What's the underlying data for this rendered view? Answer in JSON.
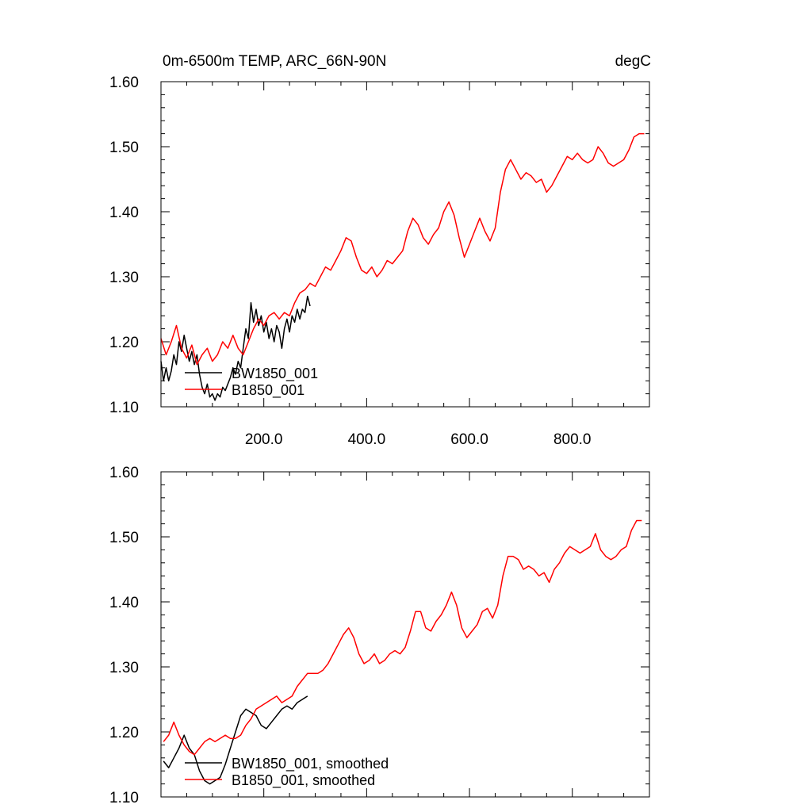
{
  "chart_data": [
    {
      "type": "line",
      "title": "0m-6500m TEMP, ARC_66N-90N",
      "units": "degC",
      "xlim": [
        0,
        950
      ],
      "ylim": [
        1.1,
        1.6
      ],
      "xticks": [
        200,
        400,
        600,
        800
      ],
      "xtick_labels": [
        "200.0",
        "400.0",
        "600.0",
        "800.0"
      ],
      "yticks": [
        1.1,
        1.2,
        1.3,
        1.4,
        1.5,
        1.6
      ],
      "ytick_labels": [
        "1.10",
        "1.20",
        "1.30",
        "1.40",
        "1.50",
        "1.60"
      ],
      "legend_position": "bottom-left",
      "series": [
        {
          "name": "BW1850_001",
          "color": "#000000",
          "x": [
            0,
            5,
            10,
            15,
            20,
            25,
            30,
            35,
            40,
            45,
            50,
            55,
            60,
            65,
            70,
            75,
            80,
            85,
            90,
            95,
            100,
            105,
            110,
            115,
            120,
            125,
            130,
            135,
            140,
            145,
            150,
            155,
            160,
            165,
            170,
            175,
            180,
            185,
            190,
            195,
            200,
            205,
            210,
            215,
            220,
            225,
            230,
            235,
            240,
            245,
            250,
            255,
            260,
            265,
            270,
            275,
            280,
            285,
            290
          ],
          "values": [
            1.17,
            1.14,
            1.16,
            1.14,
            1.155,
            1.18,
            1.165,
            1.2,
            1.185,
            1.21,
            1.19,
            1.17,
            1.185,
            1.165,
            1.18,
            1.15,
            1.13,
            1.12,
            1.135,
            1.115,
            1.12,
            1.11,
            1.12,
            1.115,
            1.13,
            1.125,
            1.135,
            1.145,
            1.16,
            1.15,
            1.17,
            1.16,
            1.19,
            1.22,
            1.205,
            1.26,
            1.23,
            1.25,
            1.225,
            1.24,
            1.215,
            1.23,
            1.205,
            1.22,
            1.2,
            1.225,
            1.215,
            1.19,
            1.22,
            1.235,
            1.215,
            1.24,
            1.23,
            1.25,
            1.235,
            1.25,
            1.245,
            1.27,
            1.255
          ]
        },
        {
          "name": "B1850_001",
          "color": "#ff0000",
          "x": [
            0,
            10,
            20,
            30,
            40,
            50,
            60,
            70,
            80,
            90,
            100,
            110,
            120,
            130,
            140,
            150,
            160,
            170,
            180,
            190,
            200,
            210,
            220,
            230,
            240,
            250,
            260,
            270,
            280,
            290,
            300,
            310,
            320,
            330,
            340,
            350,
            360,
            370,
            380,
            390,
            400,
            410,
            420,
            430,
            440,
            450,
            460,
            470,
            480,
            490,
            500,
            510,
            520,
            530,
            540,
            550,
            560,
            570,
            580,
            590,
            600,
            610,
            620,
            630,
            640,
            650,
            660,
            670,
            680,
            690,
            700,
            710,
            720,
            730,
            740,
            750,
            760,
            770,
            780,
            790,
            800,
            810,
            820,
            830,
            840,
            850,
            860,
            870,
            880,
            890,
            900,
            910,
            920,
            930,
            940
          ],
          "values": [
            1.205,
            1.18,
            1.2,
            1.225,
            1.19,
            1.175,
            1.195,
            1.165,
            1.18,
            1.19,
            1.17,
            1.18,
            1.2,
            1.19,
            1.21,
            1.19,
            1.18,
            1.2,
            1.22,
            1.235,
            1.225,
            1.24,
            1.245,
            1.235,
            1.245,
            1.24,
            1.26,
            1.275,
            1.28,
            1.29,
            1.285,
            1.3,
            1.315,
            1.31,
            1.325,
            1.34,
            1.36,
            1.355,
            1.33,
            1.31,
            1.305,
            1.315,
            1.3,
            1.31,
            1.325,
            1.32,
            1.33,
            1.34,
            1.37,
            1.39,
            1.38,
            1.36,
            1.35,
            1.365,
            1.375,
            1.4,
            1.415,
            1.395,
            1.36,
            1.33,
            1.35,
            1.37,
            1.39,
            1.37,
            1.355,
            1.375,
            1.43,
            1.465,
            1.48,
            1.465,
            1.45,
            1.46,
            1.455,
            1.445,
            1.45,
            1.43,
            1.44,
            1.455,
            1.47,
            1.485,
            1.48,
            1.49,
            1.48,
            1.475,
            1.48,
            1.5,
            1.49,
            1.475,
            1.47,
            1.475,
            1.48,
            1.495,
            1.515,
            1.52,
            1.52
          ]
        }
      ]
    },
    {
      "type": "line",
      "xlim": [
        0,
        950
      ],
      "ylim": [
        1.1,
        1.6
      ],
      "yticks": [
        1.1,
        1.2,
        1.3,
        1.4,
        1.5,
        1.6
      ],
      "ytick_labels": [
        "1.10",
        "1.20",
        "1.30",
        "1.40",
        "1.50",
        "1.60"
      ],
      "legend_position": "bottom-left",
      "series": [
        {
          "name": "BW1850_001, smoothed",
          "color": "#000000",
          "x": [
            5,
            15,
            25,
            35,
            45,
            55,
            65,
            75,
            85,
            95,
            105,
            115,
            125,
            135,
            145,
            155,
            165,
            175,
            185,
            195,
            205,
            215,
            225,
            235,
            245,
            255,
            265,
            275,
            285
          ],
          "values": [
            1.155,
            1.145,
            1.16,
            1.175,
            1.195,
            1.175,
            1.165,
            1.14,
            1.125,
            1.12,
            1.125,
            1.13,
            1.15,
            1.175,
            1.2,
            1.225,
            1.235,
            1.23,
            1.225,
            1.21,
            1.205,
            1.215,
            1.225,
            1.235,
            1.24,
            1.235,
            1.245,
            1.25,
            1.255
          ]
        },
        {
          "name": "B1850_001, smoothed",
          "color": "#ff0000",
          "x": [
            5,
            15,
            25,
            35,
            45,
            55,
            65,
            75,
            85,
            95,
            105,
            115,
            125,
            135,
            145,
            155,
            165,
            175,
            185,
            195,
            205,
            215,
            225,
            235,
            245,
            255,
            265,
            275,
            285,
            295,
            305,
            315,
            325,
            335,
            345,
            355,
            365,
            375,
            385,
            395,
            405,
            415,
            425,
            435,
            445,
            455,
            465,
            475,
            485,
            495,
            505,
            515,
            525,
            535,
            545,
            555,
            565,
            575,
            585,
            595,
            605,
            615,
            625,
            635,
            645,
            655,
            665,
            675,
            685,
            695,
            705,
            715,
            725,
            735,
            745,
            755,
            765,
            775,
            785,
            795,
            805,
            815,
            825,
            835,
            845,
            855,
            865,
            875,
            885,
            895,
            905,
            915,
            925,
            935
          ],
          "values": [
            1.185,
            1.195,
            1.215,
            1.195,
            1.18,
            1.17,
            1.165,
            1.175,
            1.185,
            1.19,
            1.185,
            1.19,
            1.195,
            1.19,
            1.19,
            1.195,
            1.21,
            1.22,
            1.235,
            1.24,
            1.245,
            1.25,
            1.255,
            1.245,
            1.25,
            1.255,
            1.27,
            1.28,
            1.29,
            1.29,
            1.29,
            1.295,
            1.305,
            1.32,
            1.335,
            1.35,
            1.36,
            1.345,
            1.32,
            1.305,
            1.31,
            1.32,
            1.305,
            1.31,
            1.32,
            1.325,
            1.32,
            1.33,
            1.355,
            1.385,
            1.385,
            1.36,
            1.355,
            1.37,
            1.38,
            1.395,
            1.415,
            1.395,
            1.36,
            1.345,
            1.355,
            1.365,
            1.385,
            1.39,
            1.375,
            1.395,
            1.44,
            1.47,
            1.47,
            1.465,
            1.45,
            1.455,
            1.45,
            1.44,
            1.445,
            1.43,
            1.45,
            1.46,
            1.475,
            1.485,
            1.48,
            1.475,
            1.48,
            1.485,
            1.505,
            1.48,
            1.47,
            1.465,
            1.47,
            1.48,
            1.485,
            1.51,
            1.525,
            1.525
          ]
        }
      ]
    }
  ]
}
